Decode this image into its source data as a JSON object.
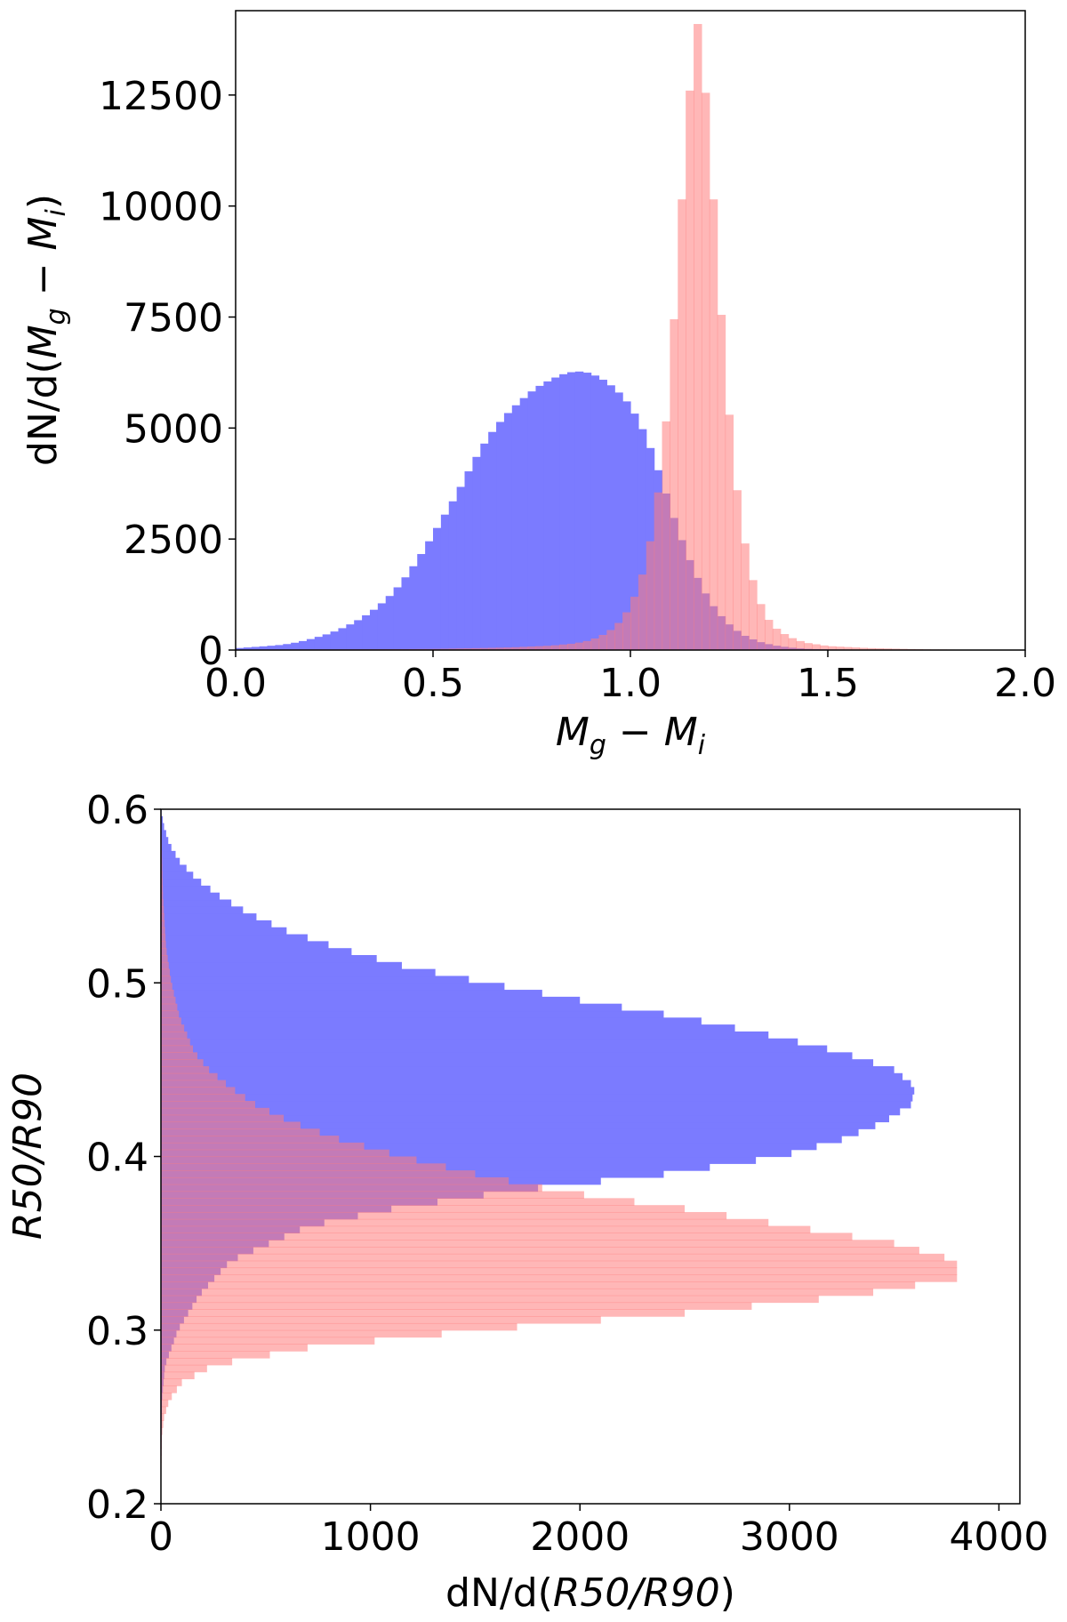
{
  "chart_data": [
    {
      "type": "histogram",
      "orientation": "vertical",
      "xlabel": "M_g − M_i",
      "xlabel_parts": {
        "base1": "M",
        "sub1": "g",
        "op": " − ",
        "base2": "M",
        "sub2": "i"
      },
      "ylabel": "dN/d(M_g − M_i)",
      "ylabel_parts": {
        "prefix": "dN/d(",
        "base1": "M",
        "sub1": "g",
        "op": " − ",
        "base2": "M",
        "sub2": "i",
        "suffix": ")"
      },
      "xlim": [
        0.0,
        2.0
      ],
      "ylim": [
        0,
        14400
      ],
      "xticks": [
        {
          "value": 0.0,
          "label": "0.0"
        },
        {
          "value": 0.5,
          "label": "0.5"
        },
        {
          "value": 1.0,
          "label": "1.0"
        },
        {
          "value": 1.5,
          "label": "1.5"
        },
        {
          "value": 2.0,
          "label": "2.0"
        }
      ],
      "yticks": [
        {
          "value": 0,
          "label": "0"
        },
        {
          "value": 2500,
          "label": "2500"
        },
        {
          "value": 5000,
          "label": "5000"
        },
        {
          "value": 7500,
          "label": "7500"
        },
        {
          "value": 10000,
          "label": "10000"
        },
        {
          "value": 12500,
          "label": "12500"
        }
      ],
      "series": [
        {
          "color": "#7b7bff",
          "points": [
            [
              0.0,
              40
            ],
            [
              0.08,
              90
            ],
            [
              0.12,
              120
            ],
            [
              0.16,
              180
            ],
            [
              0.2,
              270
            ],
            [
              0.24,
              380
            ],
            [
              0.28,
              530
            ],
            [
              0.32,
              720
            ],
            [
              0.36,
              970
            ],
            [
              0.4,
              1300
            ],
            [
              0.44,
              1750
            ],
            [
              0.48,
              2300
            ],
            [
              0.52,
              2900
            ],
            [
              0.56,
              3500
            ],
            [
              0.6,
              4200
            ],
            [
              0.64,
              4800
            ],
            [
              0.68,
              5250
            ],
            [
              0.72,
              5600
            ],
            [
              0.76,
              5900
            ],
            [
              0.8,
              6100
            ],
            [
              0.84,
              6250
            ],
            [
              0.88,
              6280
            ],
            [
              0.92,
              6150
            ],
            [
              0.96,
              5900
            ],
            [
              1.0,
              5500
            ],
            [
              1.04,
              4800
            ],
            [
              1.08,
              3800
            ],
            [
              1.12,
              2700
            ],
            [
              1.16,
              1800
            ],
            [
              1.2,
              1100
            ],
            [
              1.24,
              650
            ],
            [
              1.28,
              360
            ],
            [
              1.32,
              200
            ],
            [
              1.36,
              110
            ],
            [
              1.4,
              60
            ],
            [
              1.44,
              30
            ],
            [
              1.5,
              15
            ],
            [
              1.6,
              8
            ],
            [
              1.7,
              4
            ],
            [
              1.8,
              2
            ],
            [
              2.0,
              0
            ]
          ]
        },
        {
          "color": "#ff7b7b",
          "points": [
            [
              0.0,
              10
            ],
            [
              0.3,
              15
            ],
            [
              0.5,
              25
            ],
            [
              0.6,
              40
            ],
            [
              0.7,
              60
            ],
            [
              0.8,
              100
            ],
            [
              0.86,
              150
            ],
            [
              0.9,
              220
            ],
            [
              0.94,
              380
            ],
            [
              0.96,
              520
            ],
            [
              0.98,
              700
            ],
            [
              1.0,
              1000
            ],
            [
              1.02,
              1400
            ],
            [
              1.04,
              2000
            ],
            [
              1.06,
              2900
            ],
            [
              1.08,
              4200
            ],
            [
              1.1,
              6100
            ],
            [
              1.12,
              8800
            ],
            [
              1.14,
              11500
            ],
            [
              1.16,
              13700
            ],
            [
              1.17,
              14100
            ],
            [
              1.18,
              13600
            ],
            [
              1.2,
              11500
            ],
            [
              1.22,
              8800
            ],
            [
              1.24,
              6300
            ],
            [
              1.26,
              4300
            ],
            [
              1.28,
              2900
            ],
            [
              1.3,
              1900
            ],
            [
              1.32,
              1250
            ],
            [
              1.34,
              820
            ],
            [
              1.36,
              540
            ],
            [
              1.4,
              300
            ],
            [
              1.44,
              170
            ],
            [
              1.5,
              90
            ],
            [
              1.6,
              45
            ],
            [
              1.7,
              25
            ],
            [
              1.75,
              15
            ],
            [
              2.0,
              0
            ]
          ]
        }
      ]
    },
    {
      "type": "histogram",
      "orientation": "horizontal",
      "xlabel": "dN/d(R50/R90)",
      "xlabel_parts": {
        "prefix": "dN/d(",
        "italic": "R50/R90",
        "suffix": ")"
      },
      "ylabel": "R50/R90",
      "ylabel_parts": {
        "italic": "R50/R90"
      },
      "xlim": [
        0,
        4100
      ],
      "ylim": [
        0.2,
        0.6
      ],
      "xticks": [
        {
          "value": 0,
          "label": "0"
        },
        {
          "value": 1000,
          "label": "1000"
        },
        {
          "value": 2000,
          "label": "2000"
        },
        {
          "value": 3000,
          "label": "3000"
        },
        {
          "value": 4000,
          "label": "4000"
        }
      ],
      "yticks": [
        {
          "value": 0.2,
          "label": "0.2"
        },
        {
          "value": 0.3,
          "label": "0.3"
        },
        {
          "value": 0.4,
          "label": "0.4"
        },
        {
          "value": 0.5,
          "label": "0.5"
        },
        {
          "value": 0.6,
          "label": "0.6"
        }
      ],
      "series": [
        {
          "color": "#7b7bff",
          "points": [
            [
              0.2,
              0
            ],
            [
              0.26,
              5
            ],
            [
              0.28,
              20
            ],
            [
              0.3,
              80
            ],
            [
              0.32,
              180
            ],
            [
              0.34,
              330
            ],
            [
              0.36,
              700
            ],
            [
              0.37,
              1100
            ],
            [
              0.38,
              1650
            ],
            [
              0.39,
              2400
            ],
            [
              0.4,
              2950
            ],
            [
              0.41,
              3250
            ],
            [
              0.42,
              3450
            ],
            [
              0.43,
              3580
            ],
            [
              0.44,
              3600
            ],
            [
              0.45,
              3500
            ],
            [
              0.46,
              3250
            ],
            [
              0.47,
              2900
            ],
            [
              0.48,
              2500
            ],
            [
              0.49,
              2000
            ],
            [
              0.5,
              1550
            ],
            [
              0.51,
              1150
            ],
            [
              0.52,
              850
            ],
            [
              0.53,
              600
            ],
            [
              0.54,
              420
            ],
            [
              0.55,
              280
            ],
            [
              0.56,
              170
            ],
            [
              0.57,
              90
            ],
            [
              0.58,
              40
            ],
            [
              0.59,
              15
            ],
            [
              0.6,
              0
            ]
          ]
        },
        {
          "color": "#ff7b7b",
          "points": [
            [
              0.2,
              0
            ],
            [
              0.24,
              5
            ],
            [
              0.25,
              15
            ],
            [
              0.26,
              40
            ],
            [
              0.27,
              100
            ],
            [
              0.28,
              250
            ],
            [
              0.29,
              700
            ],
            [
              0.3,
              1500
            ],
            [
              0.31,
              2500
            ],
            [
              0.32,
              3300
            ],
            [
              0.33,
              3800
            ],
            [
              0.34,
              3800
            ],
            [
              0.35,
              3500
            ],
            [
              0.36,
              3000
            ],
            [
              0.37,
              2500
            ],
            [
              0.38,
              1900
            ],
            [
              0.39,
              1500
            ],
            [
              0.4,
              1150
            ],
            [
              0.41,
              850
            ],
            [
              0.42,
              620
            ],
            [
              0.43,
              450
            ],
            [
              0.44,
              330
            ],
            [
              0.45,
              230
            ],
            [
              0.46,
              160
            ],
            [
              0.48,
              90
            ],
            [
              0.5,
              50
            ],
            [
              0.52,
              25
            ],
            [
              0.55,
              10
            ],
            [
              0.6,
              0
            ]
          ]
        }
      ]
    }
  ]
}
